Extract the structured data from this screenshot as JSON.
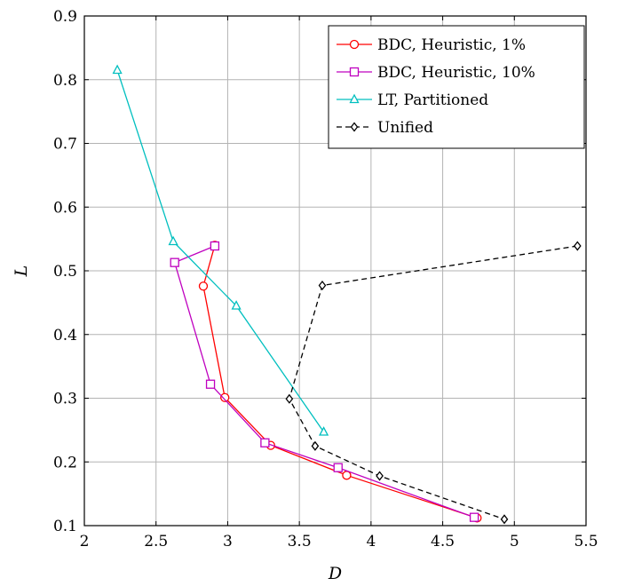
{
  "chart_data": {
    "type": "line",
    "xlabel": "D",
    "ylabel": "L",
    "xlim": [
      2,
      5.5
    ],
    "ylim": [
      0.1,
      0.9
    ],
    "xticks": [
      2,
      2.5,
      3,
      3.5,
      4,
      4.5,
      5,
      5.5
    ],
    "xtick_labels": [
      "2",
      "2.5",
      "3",
      "3.5",
      "4",
      "4.5",
      "5",
      "5.5"
    ],
    "yticks": [
      0.1,
      0.2,
      0.3,
      0.4,
      0.5,
      0.6,
      0.7,
      0.8,
      0.9
    ],
    "ytick_labels": [
      "0.1",
      "0.2",
      "0.3",
      "0.4",
      "0.5",
      "0.6",
      "0.7",
      "0.8",
      "0.9"
    ],
    "grid": true,
    "legend_position": "top-right",
    "series": [
      {
        "name": "BDC, Heuristic, 1%",
        "color": "#ff0000",
        "marker": "circle",
        "dash": "solid",
        "x": [
          2.91,
          2.83,
          2.98,
          3.3,
          3.83,
          4.74
        ],
        "y": [
          0.54,
          0.476,
          0.301,
          0.226,
          0.179,
          0.112
        ]
      },
      {
        "name": "BDC, Heuristic, 10%",
        "color": "#bf00bf",
        "marker": "square",
        "dash": "solid",
        "x": [
          2.91,
          2.63,
          2.88,
          3.26,
          3.77,
          4.72
        ],
        "y": [
          0.539,
          0.513,
          0.322,
          0.23,
          0.191,
          0.113
        ]
      },
      {
        "name": "LT, Partitioned",
        "color": "#00bfbf",
        "marker": "triangle",
        "dash": "solid",
        "x": [
          2.23,
          2.62,
          3.06,
          3.67
        ],
        "y": [
          0.815,
          0.546,
          0.445,
          0.247
        ]
      },
      {
        "name": "Unified",
        "color": "#000000",
        "marker": "diamond",
        "dash": "dashed",
        "x": [
          5.44,
          3.66,
          3.43,
          3.61,
          4.06,
          4.93
        ],
        "y": [
          0.539,
          0.477,
          0.299,
          0.225,
          0.178,
          0.11
        ]
      }
    ]
  }
}
